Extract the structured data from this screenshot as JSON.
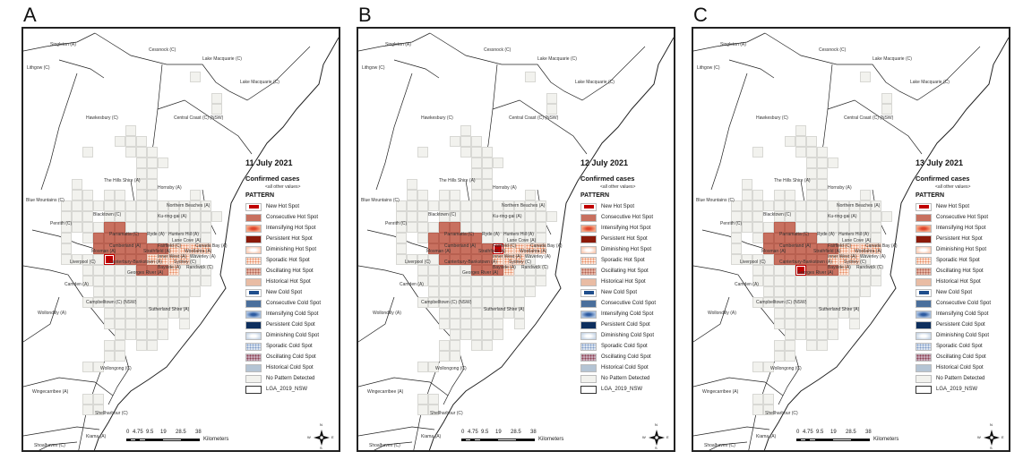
{
  "panels": [
    {
      "letter": "A",
      "date": "11 July 2021",
      "grid_variant": "A"
    },
    {
      "letter": "B",
      "date": "12 July 2021",
      "grid_variant": "B"
    },
    {
      "letter": "C",
      "date": "13 July 2021",
      "grid_variant": "C"
    }
  ],
  "legend": {
    "title": "Confirmed cases",
    "subtitle": "<all other values>",
    "heading": "PATTERN",
    "items": [
      {
        "key": "new_hot",
        "label": "New Hot Spot",
        "color": "#c00000"
      },
      {
        "key": "consecutive_hot",
        "label": "Consecutive Hot Spot",
        "color": "#c8705f"
      },
      {
        "key": "intensifying_hot",
        "label": "Intensifying Hot Spot",
        "color": "#e0442a"
      },
      {
        "key": "persistent_hot",
        "label": "Persistent Hot Spot",
        "color": "#8b1a0a"
      },
      {
        "key": "diminishing_hot",
        "label": "Diminishing Hot Spot",
        "color": "#f8c8b0"
      },
      {
        "key": "sporadic_hot",
        "label": "Sporadic Hot Spot",
        "color": "#f2a880"
      },
      {
        "key": "oscillating_hot",
        "label": "Oscillating Hot Spot",
        "color": "#c98a7a"
      },
      {
        "key": "historical_hot",
        "label": "Historical Hot Spot",
        "color": "#e9bca4"
      },
      {
        "key": "new_cold",
        "label": "New Cold Spot",
        "color": "#1f4e8c"
      },
      {
        "key": "consecutive_cold",
        "label": "Consecutive Cold Spot",
        "color": "#4a6f9c"
      },
      {
        "key": "intensifying_cold",
        "label": "Intensifying Cold Spot",
        "color": "#2c5aa0"
      },
      {
        "key": "persistent_cold",
        "label": "Persistent Cold Spot",
        "color": "#0d2f5e"
      },
      {
        "key": "diminishing_cold",
        "label": "Diminishing Cold Spot",
        "color": "#c8d6e6"
      },
      {
        "key": "sporadic_cold",
        "label": "Sporadic Cold Spot",
        "color": "#9fb6d6"
      },
      {
        "key": "oscillating_cold",
        "label": "Oscillating Cold Spot",
        "color": "#9a6070"
      },
      {
        "key": "historical_cold",
        "label": "Historical Cold Spot",
        "color": "#b4c4d4"
      },
      {
        "key": "no_pattern",
        "label": "No Pattern Detected",
        "color": "#f2f2ee"
      },
      {
        "key": "lga",
        "label": "LGA_2019_NSW",
        "color": "#ffffff"
      }
    ]
  },
  "grid_legend_codes": {
    "n": "no_pattern",
    "c": "consecutive_hot",
    "N": "new_hot",
    "s": "sporadic_hot"
  },
  "grids": {
    "A": [
      "............n...",
      "................",
      "..............n.",
      "..............n.",
      "................",
      "......n.........",
      ".....nnn........",
      "..n...nnn.......",
      ".......nnn......",
      ".......nn.......",
      ".n.....nn.......",
      ".nn.nn.nn...n...",
      "nnnnnnnnnnnnnn..",
      "nnn.nnnnnnnnnnn.",
      "nnnnccnnnnnnnn..",
      "n.ncccccnnnnnn..",
      "n..cccccccssss..",
      "nnnnNcccssssn...",
      "..nnnnncccsnnn..",
      "..nnnnnnnnnnnn..",
      "...nnnnnnnnnn...",
      "..nnnnnnnnnn....",
      "....nnnnnnnn....",
      "....nnnnnn.n....",
      ".....nnnnn......",
      "....nn.nn.......",
      "....nn..........",
      "..nn............",
      "................",
      "................",
      "..nn............",
      "..nn............"
    ],
    "B": [
      "............n...",
      "................",
      "..............n.",
      "..............n.",
      "................",
      "......n.........",
      ".....nnn........",
      "..n...nnn.......",
      ".......nnn......",
      ".......nn.......",
      ".n.....nn.......",
      ".nn.nn.nn...n...",
      "nnnnnnnnnnnnnn..",
      "nnn.nnnnnnnnnnn.",
      "nnnnccnnnnnnnn..",
      "n.ncccccnnnnnn..",
      "n..ccccccNssss..",
      "nnnncccccsssn...",
      "..nnnnncccsnnn..",
      "..nnnnnnnnnnnn..",
      "...nnnnnnnnnn...",
      "..nnnnnnnnnn....",
      "....nnnnnnnn....",
      "....nnnnnn.n....",
      ".....nnnnn......",
      "....nn.nn.......",
      "....nn..........",
      "..nn............",
      "................",
      "................",
      "..nn............",
      "..nn............"
    ],
    "C": [
      "............n...",
      "................",
      "..............n.",
      "..............n.",
      "................",
      "......n.........",
      ".....nnn........",
      "..n...nnn.......",
      ".......nnn......",
      ".......nn.......",
      ".n.....nn.......",
      ".nn.nn.nn...n...",
      "nnnnnnnnnnnnnn..",
      "nnn.nnnnnnnnnnn.",
      "nnnnccnnnnnnnn..",
      "n.ncccccnnnnnn..",
      "n..cccccccssss..",
      "nnnncccccsssn...",
      "..nnnnNcccsnnn..",
      "..nnnnnnnnnnnn..",
      "...nnnnnnnnnn...",
      "..nnnnnnnnnn....",
      "....nnnnnnnn....",
      "....nnnnnn.n....",
      ".....nnnnn......",
      "....nn.nn.......",
      "....nn..........",
      "..nn............",
      "................",
      "................",
      "..nn............",
      "..nn............"
    ]
  },
  "lga_labels": [
    "Singleton (A)",
    "Cessnock (C)",
    "Lake Macquarie (C)",
    "Lake Macquarie (C)",
    "Lithgow (C)",
    "Hawkesbury (C)",
    "Central Coast (C) (NSW)",
    "The Hills Shire (A)",
    "Hornsby (A)",
    "Blue Mountains (C)",
    "Northern Beaches (A)",
    "Blacktown (C)",
    "Ku-ring-gai (A)",
    "Penrith (C)",
    "Parramatta (C)",
    "Ryde (A)",
    "Hunters Hill (A)",
    "Lane Cove (A)",
    "Cumberland (A)",
    "Fairfield (C)",
    "Canada Bay (A)",
    "Mosman (A)",
    "Strathfield (A)",
    "Woollahra (A)",
    "Inner West (A)",
    "Waverley (A)",
    "Liverpool (C)",
    "Canterbury-Bankstown (A)",
    "Sydney (C)",
    "Bayside (A)",
    "Randwick (C)",
    "Georges River (A)",
    "Camden (A)",
    "Campbelltown (C) (NSW)",
    "Sutherland Shire (A)",
    "Wollondilly (A)",
    "Wollongong (C)",
    "Wingecarribee (A)",
    "Shellharbour (C)",
    "Kiama (A)",
    "Shoalhaven (C)"
  ],
  "scale": {
    "ticks": [
      "0",
      "4.75",
      "9.5",
      "19",
      "28.5",
      "38"
    ],
    "unit": "Kilometers"
  },
  "north_arrow": {
    "n": "N",
    "s": "S",
    "e": "E",
    "w": "W"
  }
}
